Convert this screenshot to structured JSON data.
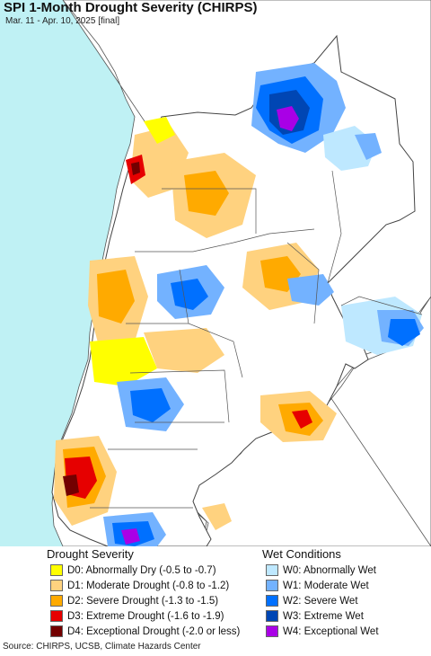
{
  "header": {
    "title": "SPI 1-Month Drought Severity (CHIRPS)",
    "subtitle": "Mar. 11 - Apr. 10, 2025 [final]"
  },
  "colors": {
    "ocean": "#bff1f4",
    "neighbor_land": "#ffffff",
    "border": "#555555",
    "d0": "#ffff00",
    "d1": "#ffd27f",
    "d2": "#ffaa00",
    "d3": "#e60000",
    "d4": "#730000",
    "w0": "#bee8ff",
    "w1": "#73b2ff",
    "w2": "#0070ff",
    "w3": "#0046b4",
    "w4": "#a900e6"
  },
  "legend": {
    "drought_heading": "Drought Severity",
    "drought_items": [
      {
        "label": "D0: Abnormally Dry (-0.5 to -0.7)",
        "color": "#ffff00"
      },
      {
        "label": "D1: Moderate Drought (-0.8 to -1.2)",
        "color": "#ffd27f"
      },
      {
        "label": "D2: Severe Drought (-1.3 to -1.5)",
        "color": "#ffaa00"
      },
      {
        "label": "D3: Extreme Drought (-1.6 to -1.9)",
        "color": "#e60000"
      },
      {
        "label": "D4: Exceptional Drought (-2.0 or less)",
        "color": "#730000"
      }
    ],
    "wet_heading": "Wet Conditions",
    "wet_items": [
      {
        "label": "W0: Abnormally Wet",
        "color": "#bee8ff"
      },
      {
        "label": "W1: Moderate Wet",
        "color": "#73b2ff"
      },
      {
        "label": "W2: Severe Wet",
        "color": "#0070ff"
      },
      {
        "label": "W3: Extreme Wet",
        "color": "#0046b4"
      },
      {
        "label": "W4: Exceptional Wet",
        "color": "#a900e6"
      }
    ]
  },
  "footer": {
    "source": "Source: CHIRPS, UCSB, Climate Hazards Center"
  }
}
